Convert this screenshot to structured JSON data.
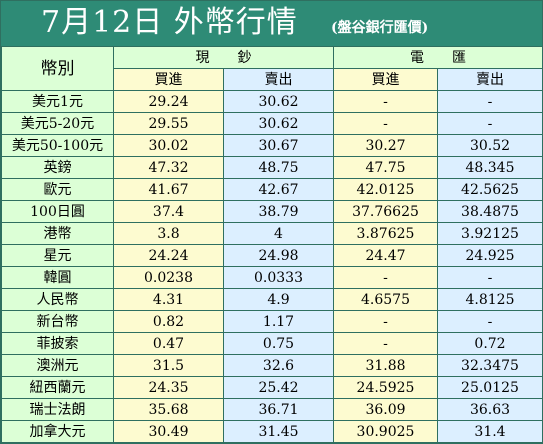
{
  "title": {
    "main": "7月12日 外幣行情",
    "sub": "(盤谷銀行匯價)"
  },
  "headers": {
    "currency": "幣別",
    "cash": "現　　鈔",
    "telegraphic": "電　　匯",
    "buy": "買進",
    "sell": "賣出"
  },
  "rows": [
    {
      "currency": "美元1元",
      "cash_buy": "29.24",
      "cash_sell": "30.62",
      "tt_buy": "-",
      "tt_sell": "-"
    },
    {
      "currency": "美元5-20元",
      "cash_buy": "29.55",
      "cash_sell": "30.62",
      "tt_buy": "-",
      "tt_sell": "-"
    },
    {
      "currency": "美元50-100元",
      "cash_buy": "30.02",
      "cash_sell": "30.67",
      "tt_buy": "30.27",
      "tt_sell": "30.52"
    },
    {
      "currency": "英鎊",
      "cash_buy": "47.32",
      "cash_sell": "48.75",
      "tt_buy": "47.75",
      "tt_sell": "48.345"
    },
    {
      "currency": "歐元",
      "cash_buy": "41.67",
      "cash_sell": "42.67",
      "tt_buy": "42.0125",
      "tt_sell": "42.5625"
    },
    {
      "currency": "100日圓",
      "cash_buy": "37.4",
      "cash_sell": "38.79",
      "tt_buy": "37.76625",
      "tt_sell": "38.4875"
    },
    {
      "currency": "港幣",
      "cash_buy": "3.8",
      "cash_sell": "4",
      "tt_buy": "3.87625",
      "tt_sell": "3.92125"
    },
    {
      "currency": "星元",
      "cash_buy": "24.24",
      "cash_sell": "24.98",
      "tt_buy": "24.47",
      "tt_sell": "24.925"
    },
    {
      "currency": "韓圓",
      "cash_buy": "0.0238",
      "cash_sell": "0.0333",
      "tt_buy": "-",
      "tt_sell": "-"
    },
    {
      "currency": "人民幣",
      "cash_buy": "4.31",
      "cash_sell": "4.9",
      "tt_buy": "4.6575",
      "tt_sell": "4.8125"
    },
    {
      "currency": "新台幣",
      "cash_buy": "0.82",
      "cash_sell": "1.17",
      "tt_buy": "-",
      "tt_sell": "-"
    },
    {
      "currency": "菲披索",
      "cash_buy": "0.47",
      "cash_sell": "0.75",
      "tt_buy": "-",
      "tt_sell": "0.72"
    },
    {
      "currency": "澳洲元",
      "cash_buy": "31.5",
      "cash_sell": "32.6",
      "tt_buy": "31.88",
      "tt_sell": "32.3475"
    },
    {
      "currency": "紐西蘭元",
      "cash_buy": "24.35",
      "cash_sell": "25.42",
      "tt_buy": "24.5925",
      "tt_sell": "25.0125"
    },
    {
      "currency": "瑞士法朗",
      "cash_buy": "35.68",
      "cash_sell": "36.71",
      "tt_buy": "36.09",
      "tt_sell": "36.63"
    },
    {
      "currency": "加拿大元",
      "cash_buy": "30.49",
      "cash_sell": "31.45",
      "tt_buy": "30.9025",
      "tt_sell": "31.4"
    }
  ],
  "colors": {
    "title_bg": "#2e8b76",
    "currency_bg": "#dcffd6",
    "buy_bg": "#fdfbd0",
    "sell_bg": "#dcefff",
    "border": "#2f6f60"
  }
}
